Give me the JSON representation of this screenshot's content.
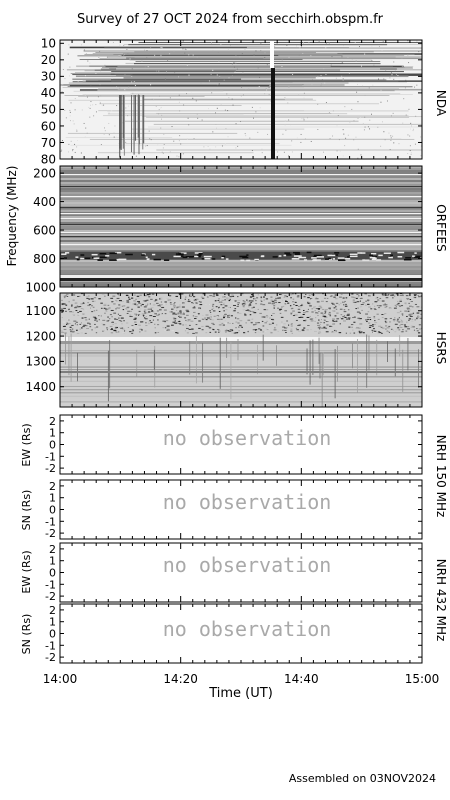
{
  "title": "Survey of 27 OCT 2024 from secchirh.obspm.fr",
  "footer": "Assembled on 03NOV2024",
  "colors": {
    "background": "#ffffff",
    "axes": "#000000",
    "no_observation_text": "#a9a9a9"
  },
  "chart_data": [
    {
      "type": "heatmap",
      "panel": "NDA",
      "name": "NDA",
      "ylabel": "",
      "ylim": [
        80,
        8
      ],
      "yticks": [
        "10",
        "20",
        "30",
        "40",
        "50",
        "60",
        "70",
        "80"
      ],
      "scale": "grayscale dynamic spectrum",
      "features": [
        "dense horizontal interference lines at 10-35 MHz",
        "vertical data gap near 14:35 UT"
      ]
    },
    {
      "type": "heatmap",
      "panel": "ORFEES",
      "name": "ORFEES",
      "ylabel": "Frequency (MHz)",
      "ylim": [
        1000,
        150
      ],
      "yticks": [
        "200",
        "400",
        "600",
        "800",
        "1000"
      ],
      "scale": "grayscale dynamic spectrum",
      "features": [
        "horizontal banding",
        "strong dark band near 780 MHz"
      ]
    },
    {
      "type": "heatmap",
      "panel": "HSRS",
      "name": "HSRS",
      "ylabel": "",
      "ylim": [
        1480,
        1030
      ],
      "yticks": [
        "1100",
        "1200",
        "1300",
        "1400"
      ],
      "scale": "grayscale dynamic spectrum",
      "features": [
        "speckled interference at 1050-1150 MHz"
      ]
    },
    {
      "type": "line",
      "panel": "NRH-150-EW",
      "ylabel": "EW (Rs)",
      "ylim": [
        -2.5,
        2.5
      ],
      "yticks": [
        "2",
        "1",
        "0",
        "-1",
        "-2"
      ],
      "annotation": "no observation"
    },
    {
      "type": "line",
      "panel": "NRH-150-SN",
      "ylabel": "SN (Rs)",
      "ylim": [
        -2.5,
        2.5
      ],
      "yticks": [
        "2",
        "1",
        "0",
        "-1",
        "-2"
      ],
      "annotation": "no observation"
    },
    {
      "type": "line",
      "panel": "NRH-432-EW",
      "ylabel": "EW (Rs)",
      "ylim": [
        -2.5,
        2.5
      ],
      "yticks": [
        "2",
        "1",
        "0",
        "-1",
        "-2"
      ],
      "annotation": "no observation"
    },
    {
      "type": "line",
      "panel": "NRH-432-SN",
      "ylabel": "SN (Rs)",
      "ylim": [
        -2.5,
        2.5
      ],
      "yticks": [
        "2",
        "1",
        "0",
        "-1",
        "-2"
      ],
      "annotation": "no observation"
    }
  ],
  "right_labels": {
    "nrh150": "NRH 150 MHz",
    "nrh432": "NRH 432 MHz"
  },
  "xaxis": {
    "label": "Time (UT)",
    "ticks": [
      "14:00",
      "14:20",
      "14:40",
      "15:00"
    ],
    "range": [
      "14:00",
      "15:00"
    ]
  }
}
